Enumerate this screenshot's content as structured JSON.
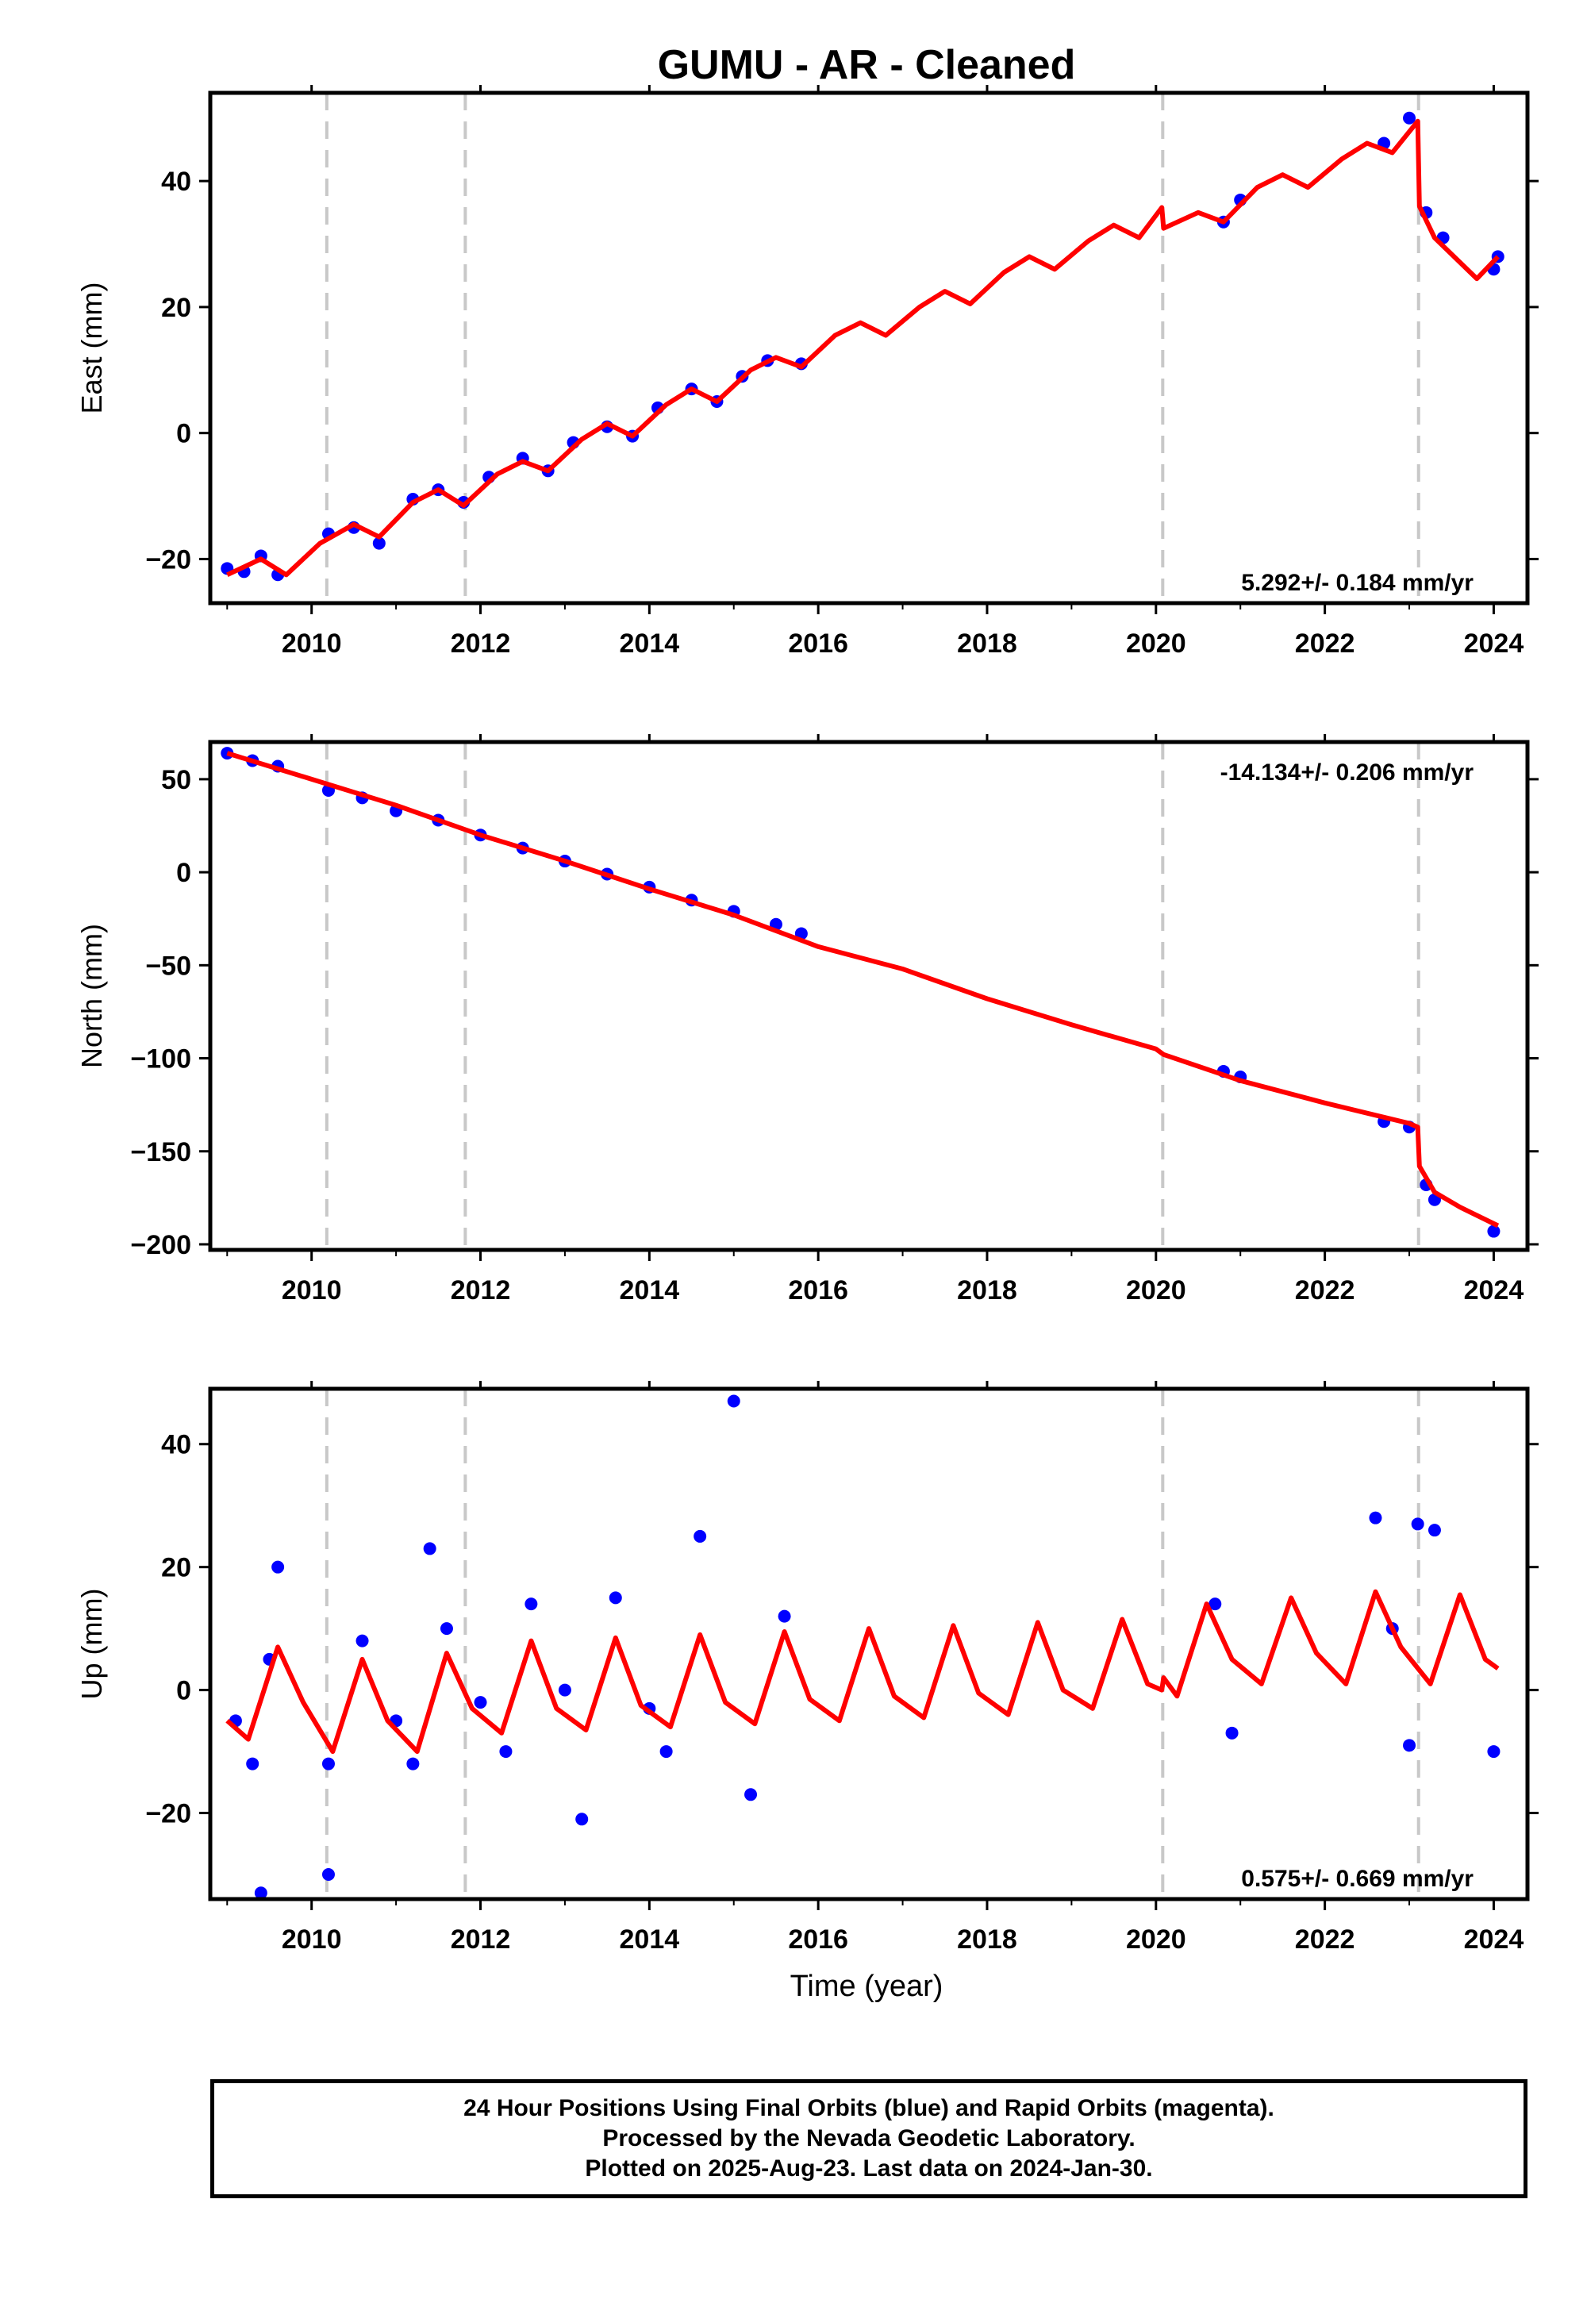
{
  "title": "GUMU  - AR - Cleaned",
  "xlabel": "Time (year)",
  "colors": {
    "data": "#0000ff",
    "model": "#ff0000",
    "break": "#c8c8c8"
  },
  "chart_data": [
    {
      "type": "scatter",
      "component": "East",
      "ylabel": "East (mm)",
      "rate": "5.292+/- 0.184 mm/yr",
      "xlim": [
        2008.8,
        2024.4
      ],
      "ylim": [
        -27,
        54
      ],
      "xticks": [
        2010,
        2012,
        2014,
        2016,
        2018,
        2020,
        2022,
        2024
      ],
      "yticks": [
        -20,
        0,
        20,
        40
      ],
      "breaks": [
        2010.18,
        2011.82,
        2020.08,
        2023.11
      ],
      "observed": [
        [
          2009.0,
          -21.5
        ],
        [
          2009.2,
          -22.0
        ],
        [
          2009.4,
          -19.5
        ],
        [
          2009.6,
          -22.5
        ],
        [
          2010.2,
          -16.0
        ],
        [
          2010.5,
          -15.0
        ],
        [
          2010.8,
          -17.5
        ],
        [
          2011.2,
          -10.5
        ],
        [
          2011.5,
          -9.0
        ],
        [
          2011.8,
          -11.0
        ],
        [
          2012.1,
          -7.0
        ],
        [
          2012.5,
          -4.0
        ],
        [
          2012.8,
          -6.0
        ],
        [
          2013.1,
          -1.5
        ],
        [
          2013.5,
          1.0
        ],
        [
          2013.8,
          -0.5
        ],
        [
          2014.1,
          4.0
        ],
        [
          2014.5,
          7.0
        ],
        [
          2014.8,
          5.0
        ],
        [
          2015.1,
          9.0
        ],
        [
          2015.4,
          11.5
        ],
        [
          2015.8,
          11.0
        ],
        [
          2020.8,
          33.5
        ],
        [
          2021.0,
          37.0
        ],
        [
          2022.7,
          46.0
        ],
        [
          2023.0,
          50.0
        ],
        [
          2023.2,
          35.0
        ],
        [
          2023.4,
          31.0
        ],
        [
          2024.0,
          26.0
        ],
        [
          2024.05,
          28.0
        ]
      ],
      "model": [
        [
          2009.0,
          -22.5
        ],
        [
          2009.4,
          -20.0
        ],
        [
          2009.7,
          -22.5
        ],
        [
          2010.1,
          -17.5
        ],
        [
          2010.5,
          -14.5
        ],
        [
          2010.8,
          -16.5
        ],
        [
          2011.2,
          -11.0
        ],
        [
          2011.5,
          -9.0
        ],
        [
          2011.8,
          -11.5
        ],
        [
          2012.2,
          -6.5
        ],
        [
          2012.5,
          -4.5
        ],
        [
          2012.8,
          -6.0
        ],
        [
          2013.2,
          -1.0
        ],
        [
          2013.5,
          1.5
        ],
        [
          2013.8,
          -0.5
        ],
        [
          2014.2,
          4.5
        ],
        [
          2014.5,
          7.0
        ],
        [
          2014.8,
          5.0
        ],
        [
          2015.2,
          10.0
        ],
        [
          2015.5,
          12.0
        ],
        [
          2015.8,
          10.5
        ],
        [
          2016.2,
          15.5
        ],
        [
          2016.5,
          17.5
        ],
        [
          2016.8,
          15.5
        ],
        [
          2017.2,
          20.0
        ],
        [
          2017.5,
          22.5
        ],
        [
          2017.8,
          20.5
        ],
        [
          2018.2,
          25.5
        ],
        [
          2018.5,
          28.0
        ],
        [
          2018.8,
          26.0
        ],
        [
          2019.2,
          30.5
        ],
        [
          2019.5,
          33.0
        ],
        [
          2019.8,
          31.0
        ],
        [
          2020.07,
          35.8
        ],
        [
          2020.09,
          32.5
        ],
        [
          2020.5,
          35.0
        ],
        [
          2020.8,
          33.5
        ],
        [
          2021.2,
          39.0
        ],
        [
          2021.5,
          41.0
        ],
        [
          2021.8,
          39.0
        ],
        [
          2022.2,
          43.5
        ],
        [
          2022.5,
          46.0
        ],
        [
          2022.8,
          44.5
        ],
        [
          2023.1,
          49.5
        ],
        [
          2023.12,
          36.0
        ],
        [
          2023.3,
          31.0
        ],
        [
          2023.8,
          24.5
        ],
        [
          2024.05,
          28.0
        ]
      ]
    },
    {
      "type": "scatter",
      "component": "North",
      "ylabel": "North (mm)",
      "rate": "-14.134+/- 0.206 mm/yr",
      "xlim": [
        2008.8,
        2024.4
      ],
      "ylim": [
        -203,
        70
      ],
      "xticks": [
        2010,
        2012,
        2014,
        2016,
        2018,
        2020,
        2022,
        2024
      ],
      "yticks": [
        -200,
        -150,
        -100,
        -50,
        0,
        50
      ],
      "breaks": [
        2010.18,
        2011.82,
        2020.08,
        2023.11
      ],
      "observed": [
        [
          2009.0,
          64.0
        ],
        [
          2009.3,
          60.0
        ],
        [
          2009.6,
          57.0
        ],
        [
          2010.2,
          44.0
        ],
        [
          2010.6,
          40.0
        ],
        [
          2011.0,
          33.0
        ],
        [
          2011.5,
          28.0
        ],
        [
          2012.0,
          20.0
        ],
        [
          2012.5,
          13.0
        ],
        [
          2013.0,
          6.0
        ],
        [
          2013.5,
          -1.0
        ],
        [
          2014.0,
          -8.0
        ],
        [
          2014.5,
          -15.0
        ],
        [
          2015.0,
          -21.0
        ],
        [
          2015.5,
          -28.0
        ],
        [
          2015.8,
          -33.0
        ],
        [
          2020.8,
          -107.0
        ],
        [
          2021.0,
          -110.0
        ],
        [
          2022.7,
          -134.0
        ],
        [
          2023.0,
          -137.0
        ],
        [
          2023.2,
          -168.0
        ],
        [
          2023.3,
          -176.0
        ],
        [
          2024.0,
          -193.0
        ]
      ],
      "model": [
        [
          2009.0,
          64.0
        ],
        [
          2010.0,
          50.0
        ],
        [
          2011.0,
          36.0
        ],
        [
          2012.0,
          20.0
        ],
        [
          2013.0,
          6.0
        ],
        [
          2014.0,
          -9.0
        ],
        [
          2015.0,
          -23.0
        ],
        [
          2016.0,
          -40.0
        ],
        [
          2017.0,
          -52.0
        ],
        [
          2018.0,
          -68.0
        ],
        [
          2019.0,
          -82.0
        ],
        [
          2020.0,
          -95.0
        ],
        [
          2020.09,
          -98.0
        ],
        [
          2021.0,
          -112.0
        ],
        [
          2022.0,
          -124.0
        ],
        [
          2023.0,
          -135.0
        ],
        [
          2023.1,
          -137.0
        ],
        [
          2023.12,
          -158.0
        ],
        [
          2023.3,
          -172.0
        ],
        [
          2023.6,
          -180.0
        ],
        [
          2024.05,
          -190.0
        ]
      ]
    },
    {
      "type": "scatter",
      "component": "Up",
      "ylabel": "Up (mm)",
      "rate": "0.575+/- 0.669 mm/yr",
      "xlim": [
        2008.8,
        2024.4
      ],
      "ylim": [
        -34,
        49
      ],
      "xticks": [
        2010,
        2012,
        2014,
        2016,
        2018,
        2020,
        2022,
        2024
      ],
      "yticks": [
        -20,
        0,
        20,
        40
      ],
      "breaks": [
        2010.18,
        2011.82,
        2020.08,
        2023.11
      ],
      "observed": [
        [
          2009.1,
          -5.0
        ],
        [
          2009.3,
          -12.0
        ],
        [
          2009.4,
          -33.0
        ],
        [
          2009.5,
          5.0
        ],
        [
          2009.6,
          20.0
        ],
        [
          2010.2,
          -12.0
        ],
        [
          2010.2,
          -30.0
        ],
        [
          2010.6,
          8.0
        ],
        [
          2011.0,
          -5.0
        ],
        [
          2011.2,
          -12.0
        ],
        [
          2011.4,
          23.0
        ],
        [
          2011.6,
          10.0
        ],
        [
          2012.0,
          -2.0
        ],
        [
          2012.3,
          -10.0
        ],
        [
          2012.6,
          14.0
        ],
        [
          2013.0,
          0.0
        ],
        [
          2013.2,
          -21.0
        ],
        [
          2013.6,
          15.0
        ],
        [
          2014.0,
          -3.0
        ],
        [
          2014.2,
          -10.0
        ],
        [
          2014.6,
          25.0
        ],
        [
          2015.0,
          47.0
        ],
        [
          2015.2,
          -17.0
        ],
        [
          2015.6,
          12.0
        ],
        [
          2020.7,
          14.0
        ],
        [
          2020.9,
          -7.0
        ],
        [
          2022.6,
          28.0
        ],
        [
          2022.8,
          10.0
        ],
        [
          2023.0,
          -9.0
        ],
        [
          2023.1,
          27.0
        ],
        [
          2023.3,
          26.0
        ],
        [
          2024.0,
          -10.0
        ]
      ],
      "model": [
        [
          2009.0,
          -5.0
        ],
        [
          2009.25,
          -8.0
        ],
        [
          2009.6,
          7.0
        ],
        [
          2009.9,
          -2.0
        ],
        [
          2010.25,
          -10.0
        ],
        [
          2010.6,
          5.0
        ],
        [
          2010.9,
          -5.0
        ],
        [
          2011.25,
          -10.0
        ],
        [
          2011.6,
          6.0
        ],
        [
          2011.9,
          -3.0
        ],
        [
          2012.25,
          -7.0
        ],
        [
          2012.6,
          8.0
        ],
        [
          2012.9,
          -3.0
        ],
        [
          2013.25,
          -6.5
        ],
        [
          2013.6,
          8.5
        ],
        [
          2013.9,
          -2.5
        ],
        [
          2014.25,
          -6.0
        ],
        [
          2014.6,
          9.0
        ],
        [
          2014.9,
          -2.0
        ],
        [
          2015.25,
          -5.5
        ],
        [
          2015.6,
          9.5
        ],
        [
          2015.9,
          -1.5
        ],
        [
          2016.25,
          -5.0
        ],
        [
          2016.6,
          10.0
        ],
        [
          2016.9,
          -1.0
        ],
        [
          2017.25,
          -4.5
        ],
        [
          2017.6,
          10.5
        ],
        [
          2017.9,
          -0.5
        ],
        [
          2018.25,
          -4.0
        ],
        [
          2018.6,
          11.0
        ],
        [
          2018.9,
          0.0
        ],
        [
          2019.25,
          -3.0
        ],
        [
          2019.6,
          11.5
        ],
        [
          2019.9,
          1.0
        ],
        [
          2020.07,
          0.0
        ],
        [
          2020.09,
          2.0
        ],
        [
          2020.25,
          -1.0
        ],
        [
          2020.6,
          14.0
        ],
        [
          2020.9,
          5.0
        ],
        [
          2021.25,
          1.0
        ],
        [
          2021.6,
          15.0
        ],
        [
          2021.9,
          6.0
        ],
        [
          2022.25,
          1.0
        ],
        [
          2022.6,
          16.0
        ],
        [
          2022.9,
          7.0
        ],
        [
          2023.25,
          1.0
        ],
        [
          2023.6,
          15.5
        ],
        [
          2023.9,
          5.0
        ],
        [
          2024.05,
          3.5
        ]
      ]
    }
  ],
  "footer": {
    "line1": "24 Hour Positions Using Final Orbits (blue) and Rapid Orbits (magenta).",
    "line2": "Processed by the Nevada Geodetic Laboratory.",
    "line3": "Plotted on 2025-Aug-23. Last data on 2024-Jan-30."
  }
}
